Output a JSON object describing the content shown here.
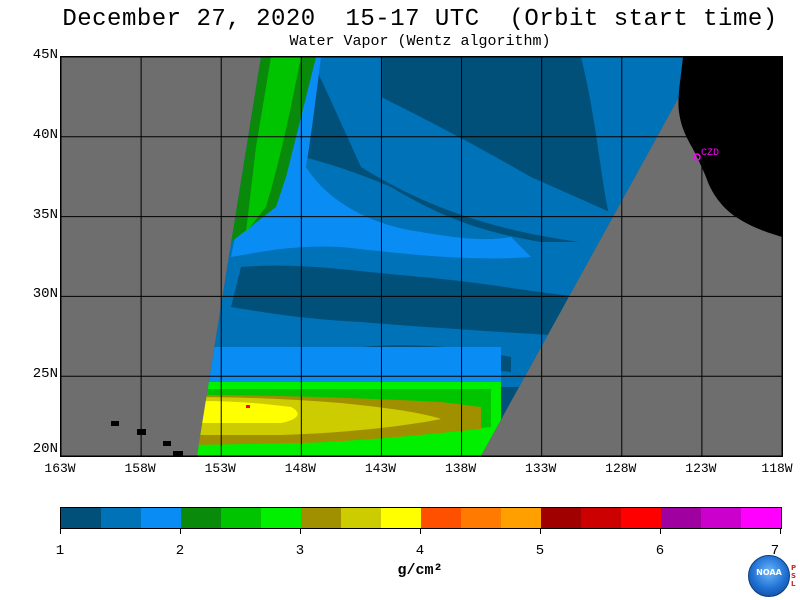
{
  "title": "December 27, 2020  15-17 UTC  (Orbit start time)",
  "subtitle": "Water Vapor (Wentz algorithm)",
  "map": {
    "lat_labels": [
      "45N",
      "40N",
      "35N",
      "30N",
      "25N",
      "20N"
    ],
    "lat_values": [
      45,
      40,
      35,
      30,
      25,
      20
    ],
    "lon_labels": [
      "163W",
      "158W",
      "153W",
      "148W",
      "143W",
      "138W",
      "133W",
      "128W",
      "123W",
      "118W"
    ],
    "lon_values": [
      -163,
      -158,
      -153,
      -148,
      -143,
      -138,
      -133,
      -128,
      -123,
      -118
    ],
    "lat_range": [
      20,
      45
    ],
    "lon_range": [
      -163,
      -118
    ],
    "grid": true,
    "no_data_color": "#6e6e6e",
    "land_color": "#000000",
    "station_label": "CZD",
    "station_color": "#ff00ff"
  },
  "colorbar": {
    "colors": [
      "#00507a",
      "#0072b8",
      "#0a8cf5",
      "#0a8a0a",
      "#00c400",
      "#00f000",
      "#a09000",
      "#cccc00",
      "#ffff00",
      "#ff5000",
      "#ff7a00",
      "#ffa000",
      "#a00000",
      "#cc0000",
      "#ff0000",
      "#a000a0",
      "#cc00cc",
      "#ff00ff"
    ],
    "tick_labels": [
      "1",
      "2",
      "3",
      "4",
      "5",
      "6",
      "7"
    ],
    "range": [
      1,
      7
    ],
    "unit": "g/cm²"
  },
  "logo": {
    "text": "NOAA",
    "side_text": "PSL"
  }
}
